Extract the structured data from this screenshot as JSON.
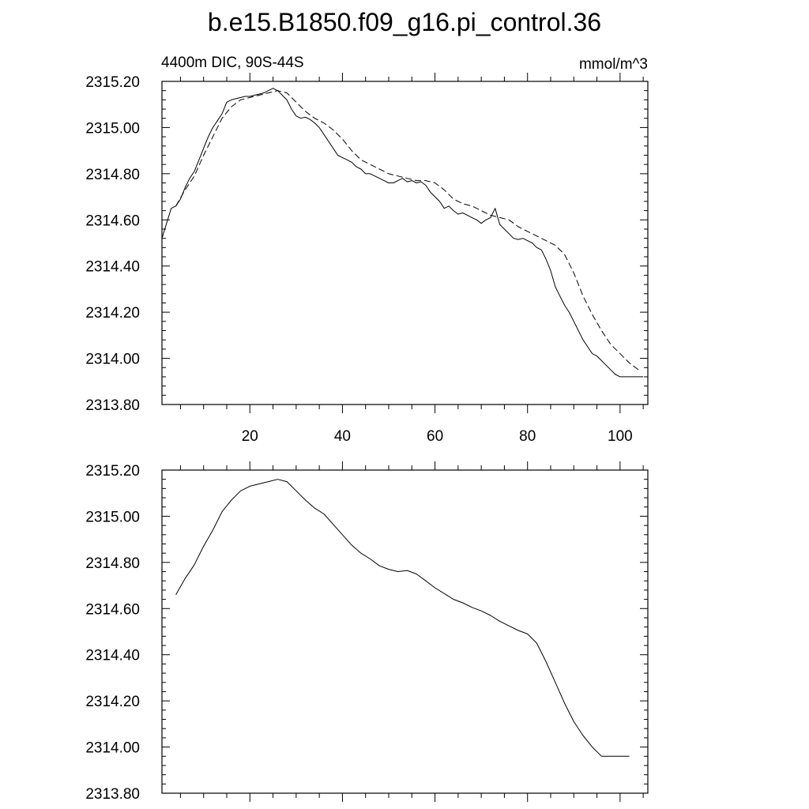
{
  "title": "b.e15.B1850.f09_g16.pi_control.36",
  "colors": {
    "line": "#000000",
    "background": "#ffffff",
    "frame": "#000000"
  },
  "chart_data": [
    {
      "type": "line",
      "subtitle_left": "4400m DIC, 90S-44S",
      "subtitle_right": "mmol/m^3",
      "xlim": [
        1,
        106
      ],
      "ylim": [
        2313.8,
        2315.2
      ],
      "xticks": [
        20,
        40,
        60,
        80,
        100
      ],
      "xtick_labels": [
        "20",
        "40",
        "60",
        "80",
        "100"
      ],
      "yticks": [
        2313.8,
        2314.0,
        2314.2,
        2314.4,
        2314.6,
        2314.8,
        2315.0,
        2315.2
      ],
      "ytick_labels": [
        "2313.80",
        "2314.00",
        "2314.20",
        "2314.40",
        "2314.60",
        "2314.80",
        "2315.00",
        "2315.20"
      ],
      "grid": false,
      "series": [
        {
          "style": "solid",
          "x": [
            1,
            3,
            4,
            5,
            6,
            7,
            8,
            9,
            10,
            11,
            12,
            13,
            14,
            15,
            16,
            17,
            18,
            19,
            20,
            21,
            22,
            23,
            24,
            25,
            26,
            27,
            28,
            29,
            30,
            31,
            32,
            33,
            34,
            35,
            36,
            37,
            38,
            39,
            40,
            41,
            42,
            43,
            44,
            45,
            46,
            47,
            48,
            49,
            50,
            51,
            52,
            53,
            54,
            55,
            56,
            57,
            58,
            59,
            60,
            61,
            62,
            63,
            64,
            65,
            66,
            67,
            68,
            69,
            70,
            71,
            72,
            73,
            74,
            75,
            76,
            77,
            78,
            79,
            80,
            81,
            82,
            83,
            84,
            85,
            86,
            87,
            88,
            89,
            90,
            91,
            92,
            93,
            94,
            95,
            96,
            97,
            98,
            99,
            100,
            101,
            102,
            103,
            104,
            105
          ],
          "y": [
            2314.52,
            2314.65,
            2314.66,
            2314.69,
            2314.74,
            2314.78,
            2314.81,
            2314.86,
            2314.91,
            2314.96,
            2315.0,
            2315.03,
            2315.06,
            2315.11,
            2315.12,
            2315.125,
            2315.13,
            2315.135,
            2315.135,
            2315.14,
            2315.145,
            2315.15,
            2315.16,
            2315.17,
            2315.16,
            2315.14,
            2315.12,
            2315.08,
            2315.05,
            2315.04,
            2315.045,
            2315.035,
            2315.02,
            2315.0,
            2314.97,
            2314.94,
            2314.91,
            2314.88,
            2314.87,
            2314.86,
            2314.85,
            2314.83,
            2314.82,
            2314.8,
            2314.8,
            2314.79,
            2314.78,
            2314.77,
            2314.76,
            2314.76,
            2314.77,
            2314.78,
            2314.765,
            2314.77,
            2314.76,
            2314.765,
            2314.75,
            2314.72,
            2314.7,
            2314.68,
            2314.65,
            2314.66,
            2314.64,
            2314.625,
            2314.63,
            2314.62,
            2314.61,
            2314.6,
            2314.585,
            2314.6,
            2314.61,
            2314.65,
            2314.58,
            2314.56,
            2314.54,
            2314.52,
            2314.515,
            2314.52,
            2314.51,
            2314.5,
            2314.48,
            2314.47,
            2314.43,
            2314.38,
            2314.31,
            2314.27,
            2314.23,
            2314.2,
            2314.16,
            2314.12,
            2314.08,
            2314.05,
            2314.02,
            2314.01,
            2313.99,
            2313.97,
            2313.95,
            2313.93,
            2313.92,
            2313.92,
            2313.92,
            2313.92,
            2313.92,
            2313.92
          ]
        },
        {
          "style": "dashed",
          "x": [
            4,
            6,
            8,
            10,
            12,
            14,
            16,
            18,
            20,
            22,
            24,
            26,
            28,
            30,
            32,
            34,
            36,
            38,
            40,
            42,
            44,
            46,
            48,
            50,
            52,
            54,
            56,
            58,
            60,
            62,
            64,
            66,
            68,
            70,
            72,
            74,
            76,
            78,
            80,
            82,
            84,
            86,
            88,
            90,
            92,
            94,
            96,
            98,
            100,
            102,
            104
          ],
          "y": [
            2314.66,
            2314.73,
            2314.79,
            2314.88,
            2314.96,
            2315.04,
            2315.09,
            2315.12,
            2315.13,
            2315.14,
            2315.15,
            2315.16,
            2315.15,
            2315.11,
            2315.07,
            2315.04,
            2315.02,
            2314.99,
            2314.95,
            2314.9,
            2314.86,
            2314.84,
            2314.82,
            2314.8,
            2314.79,
            2314.78,
            2314.77,
            2314.77,
            2314.76,
            2314.73,
            2314.69,
            2314.67,
            2314.66,
            2314.64,
            2314.62,
            2314.61,
            2314.6,
            2314.57,
            2314.55,
            2314.53,
            2314.51,
            2314.49,
            2314.45,
            2314.37,
            2314.27,
            2314.19,
            2314.12,
            2314.06,
            2314.02,
            2313.98,
            2313.95
          ]
        }
      ]
    },
    {
      "type": "line",
      "xlim": [
        1,
        106
      ],
      "ylim": [
        2313.8,
        2315.2
      ],
      "xticks": [
        20,
        40,
        60,
        80,
        100
      ],
      "yticks": [
        2313.8,
        2314.0,
        2314.2,
        2314.4,
        2314.6,
        2314.8,
        2315.0,
        2315.2
      ],
      "ytick_labels": [
        "2313.80",
        "2314.00",
        "2314.20",
        "2314.40",
        "2314.60",
        "2314.80",
        "2315.00",
        "2315.20"
      ],
      "grid": false,
      "series": [
        {
          "style": "solid",
          "x": [
            4,
            6,
            8,
            10,
            12,
            14,
            16,
            18,
            20,
            22,
            24,
            26,
            28,
            30,
            32,
            34,
            36,
            38,
            40,
            42,
            44,
            46,
            48,
            50,
            52,
            54,
            56,
            58,
            60,
            62,
            64,
            66,
            68,
            70,
            72,
            74,
            76,
            78,
            80,
            82,
            84,
            86,
            88,
            90,
            92,
            94,
            96,
            98,
            100,
            102
          ],
          "y": [
            2314.66,
            2314.73,
            2314.79,
            2314.87,
            2314.94,
            2315.02,
            2315.07,
            2315.11,
            2315.13,
            2315.14,
            2315.15,
            2315.16,
            2315.15,
            2315.11,
            2315.07,
            2315.035,
            2315.01,
            2314.965,
            2314.92,
            2314.875,
            2314.84,
            2314.815,
            2314.785,
            2314.77,
            2314.76,
            2314.765,
            2314.75,
            2314.72,
            2314.69,
            2314.665,
            2314.64,
            2314.625,
            2314.605,
            2314.59,
            2314.57,
            2314.545,
            2314.525,
            2314.505,
            2314.49,
            2314.45,
            2314.37,
            2314.28,
            2314.19,
            2314.11,
            2314.05,
            2314.0,
            2313.96,
            2313.96,
            2313.96,
            2313.96
          ]
        }
      ]
    }
  ]
}
